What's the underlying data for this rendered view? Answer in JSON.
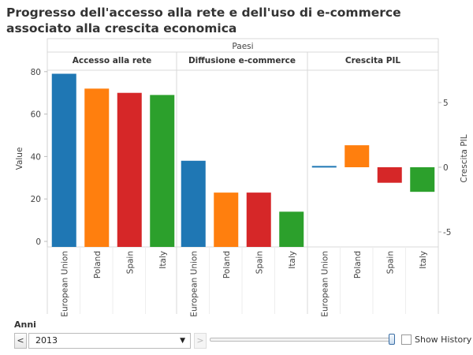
{
  "chart_data": {
    "type": "bar",
    "title": "Progresso dell'accesso alla rete e dell'uso di e-commerce associato alla crescita economica",
    "header_label": "Paesi",
    "categories": [
      "European Union",
      "Poland",
      "Spain",
      "Italy"
    ],
    "colors": [
      "#1f77b4",
      "#ff7f0e",
      "#d62728",
      "#2ca02c"
    ],
    "panels": [
      {
        "label": "Accesso alla rete",
        "axis": "left",
        "values": [
          79,
          72,
          70,
          69
        ]
      },
      {
        "label": "Diffusione e-commerce",
        "axis": "left",
        "values": [
          38,
          23,
          23,
          14
        ]
      },
      {
        "label": "Crescita PIL",
        "axis": "right",
        "values": [
          0.1,
          1.7,
          -1.2,
          -1.9
        ]
      }
    ],
    "left_axis": {
      "label": "Value",
      "range": [
        0,
        85
      ],
      "ticks": [
        0,
        20,
        40,
        60,
        80
      ]
    },
    "right_axis": {
      "label": "Crescita PIL",
      "range": [
        -6,
        7
      ],
      "ticks": [
        5,
        0,
        -5
      ],
      "tick_labels": [
        "5",
        "0",
        "-5"
      ]
    }
  },
  "controls": {
    "filter_label": "Anni",
    "year_value": "2013",
    "prev_icon": "<",
    "next_icon": ">",
    "show_history_label": "Show History"
  }
}
